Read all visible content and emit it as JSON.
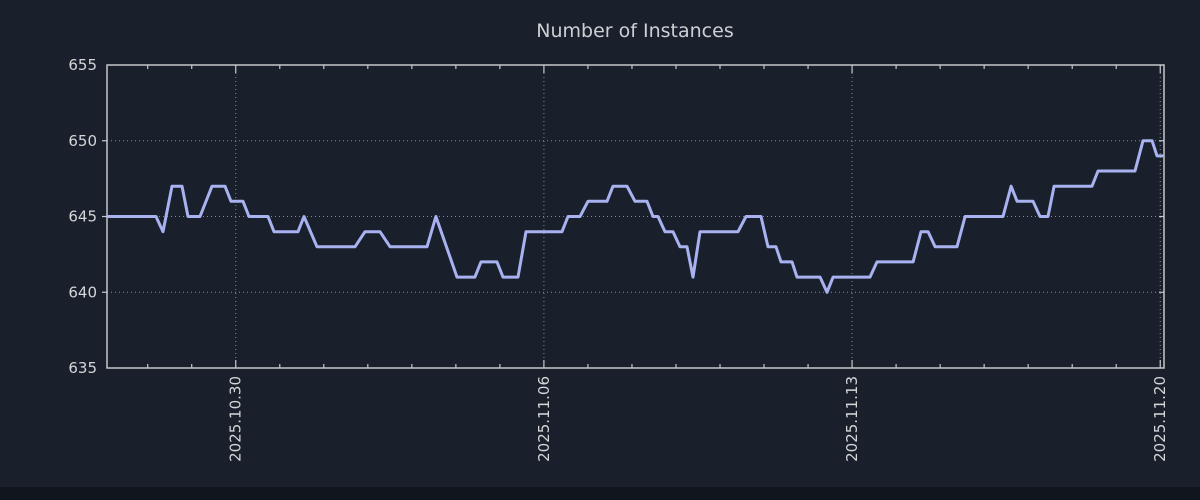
{
  "page": {
    "title": "Number of Instances"
  },
  "chart_data": {
    "type": "line",
    "title": "Number of Instances",
    "xlabel": "",
    "ylabel": "",
    "ylim": [
      635,
      655
    ],
    "yticks": [
      635,
      640,
      645,
      650,
      655
    ],
    "grid_yticks": [
      640,
      645,
      650
    ],
    "xticks_major": [
      {
        "index": 2,
        "label": "2025.10.30"
      },
      {
        "index": 9,
        "label": "2025.11.06"
      },
      {
        "index": 16,
        "label": "2025.11.13"
      },
      {
        "index": 23,
        "label": "2025.11.20"
      }
    ],
    "xticks_minor": {
      "start_frac": 0.0385,
      "step_frac": 0.04165,
      "count": 24
    },
    "grid": "dotted",
    "legend": null,
    "colors": {
      "background": "#19202c",
      "bottom_band": "#10151e",
      "line": "#a9b2f0",
      "axis": "#c6c8ca",
      "grid": "#aab0b4",
      "text": "#d4d6d8",
      "title": "#ccd0d4"
    },
    "points": [
      [
        0.0,
        645
      ],
      [
        0.0464,
        645
      ],
      [
        0.053,
        644
      ],
      [
        0.0615,
        647
      ],
      [
        0.071,
        647
      ],
      [
        0.0766,
        645
      ],
      [
        0.088,
        645
      ],
      [
        0.0993,
        647
      ],
      [
        0.1116,
        647
      ],
      [
        0.1173,
        646
      ],
      [
        0.1287,
        646
      ],
      [
        0.1343,
        645
      ],
      [
        0.1523,
        645
      ],
      [
        0.158,
        644
      ],
      [
        0.1807,
        644
      ],
      [
        0.1864,
        645
      ],
      [
        0.1987,
        643
      ],
      [
        0.2346,
        643
      ],
      [
        0.2441,
        644
      ],
      [
        0.2583,
        644
      ],
      [
        0.2678,
        643
      ],
      [
        0.3027,
        643
      ],
      [
        0.3112,
        645
      ],
      [
        0.3311,
        641
      ],
      [
        0.3481,
        641
      ],
      [
        0.3538,
        642
      ],
      [
        0.369,
        642
      ],
      [
        0.3746,
        641
      ],
      [
        0.3888,
        641
      ],
      [
        0.3964,
        644
      ],
      [
        0.4305,
        644
      ],
      [
        0.4361,
        645
      ],
      [
        0.4475,
        645
      ],
      [
        0.4551,
        646
      ],
      [
        0.473,
        646
      ],
      [
        0.4787,
        647
      ],
      [
        0.492,
        647
      ],
      [
        0.4995,
        646
      ],
      [
        0.5109,
        646
      ],
      [
        0.5166,
        645
      ],
      [
        0.5213,
        645
      ],
      [
        0.5279,
        644
      ],
      [
        0.5355,
        644
      ],
      [
        0.5421,
        643
      ],
      [
        0.5487,
        643
      ],
      [
        0.5544,
        641
      ],
      [
        0.561,
        644
      ],
      [
        0.597,
        644
      ],
      [
        0.6045,
        645
      ],
      [
        0.6187,
        645
      ],
      [
        0.6254,
        643
      ],
      [
        0.6329,
        643
      ],
      [
        0.6377,
        642
      ],
      [
        0.6481,
        642
      ],
      [
        0.6528,
        641
      ],
      [
        0.6746,
        641
      ],
      [
        0.6812,
        640
      ],
      [
        0.6869,
        641
      ],
      [
        0.7219,
        641
      ],
      [
        0.7285,
        642
      ],
      [
        0.7626,
        642
      ],
      [
        0.7701,
        644
      ],
      [
        0.7768,
        644
      ],
      [
        0.7834,
        643
      ],
      [
        0.8042,
        643
      ],
      [
        0.8118,
        645
      ],
      [
        0.8477,
        645
      ],
      [
        0.8553,
        647
      ],
      [
        0.861,
        646
      ],
      [
        0.8761,
        646
      ],
      [
        0.8827,
        645
      ],
      [
        0.8903,
        645
      ],
      [
        0.896,
        647
      ],
      [
        0.9319,
        647
      ],
      [
        0.9376,
        648
      ],
      [
        0.9726,
        648
      ],
      [
        0.9801,
        650
      ],
      [
        0.9887,
        650
      ],
      [
        0.9934,
        649
      ],
      [
        1.0,
        649
      ]
    ]
  }
}
